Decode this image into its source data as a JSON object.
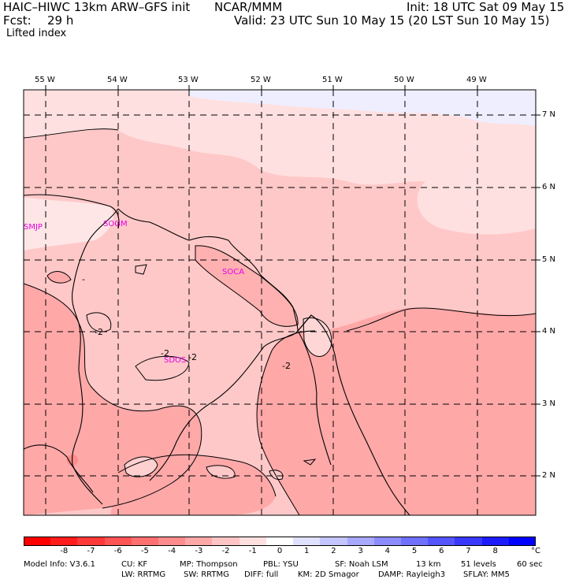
{
  "header": {
    "model_title": "HAIC–HIWC 13km ARW–GFS init",
    "center": "NCAR/MMM",
    "init": "Init: 18 UTC Sat 09 May 15",
    "fcst_label": "Fcst:",
    "fcst_hours": "29 h",
    "valid": "Valid: 23 UTC Sun 10 May 15 (20 LST Sun 10 May 15)",
    "field": "Lifted index"
  },
  "map": {
    "lon_labels": [
      "55 W",
      "54 W",
      "53 W",
      "52 W",
      "51 W",
      "50 W",
      "49 W"
    ],
    "lat_labels": [
      "7 N",
      "6 N",
      "5 N",
      "4 N",
      "3 N",
      "2 N"
    ],
    "stations": [
      "SMJP",
      "SOGM",
      "SOCA",
      "SDOS"
    ],
    "contour_labels": [
      "-2",
      "-2",
      "-2",
      "-2",
      "-"
    ]
  },
  "colorbar": {
    "colors": [
      "#ff0000",
      "#ff1c1c",
      "#ff3838",
      "#ff5555",
      "#ff7070",
      "#ff8c8c",
      "#ffa8a8",
      "#ffc4c4",
      "#ffe0e0",
      "#ffffff",
      "#e0e0ff",
      "#c4c4ff",
      "#a8a8ff",
      "#8c8cff",
      "#7070ff",
      "#5555ff",
      "#3838ff",
      "#1c1cff",
      "#0000ff"
    ],
    "labels": [
      "-8",
      "-7",
      "-6",
      "-5",
      "-4",
      "-3",
      "-2",
      "-1",
      "0",
      "1",
      "2",
      "3",
      "4",
      "5",
      "6",
      "7",
      "8"
    ],
    "unit": "°C"
  },
  "footer": {
    "line1": [
      "Model Info: V3.6.1",
      "CU: KF",
      "MP: Thompson",
      "PBL: YSU",
      "SF: Noah LSM",
      "13 km",
      "51 levels",
      "60 sec"
    ],
    "line2": [
      "LW: RRTMG",
      "SW: RRTMG",
      "DIFF: full",
      "KM: 2D Smagor",
      "DAMP: Rayleigh3",
      "SFLAY: MM5"
    ]
  }
}
